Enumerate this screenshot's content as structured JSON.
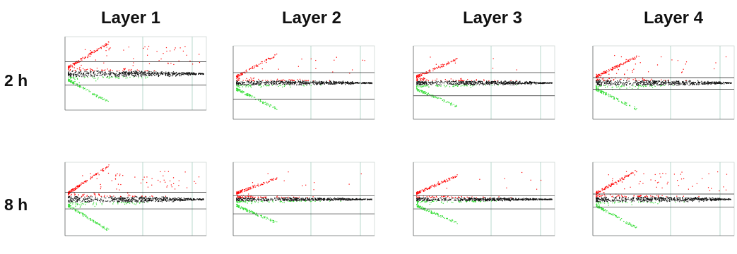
{
  "columns": [
    {
      "label": "Layer 1"
    },
    {
      "label": "Layer 2"
    },
    {
      "label": "Layer 3"
    },
    {
      "label": "Layer 4"
    }
  ],
  "rows": [
    {
      "label": "2 h"
    },
    {
      "label": "8 h"
    }
  ],
  "colors": {
    "up": "#ff0000",
    "down": "#33dd33",
    "neutral": "#111111",
    "gridline": "#9cc8b8",
    "threshold": "#222222"
  },
  "chart_data": [
    {
      "type": "scatter",
      "layer": "Layer 1",
      "time": "2 h",
      "up_spread": 1.0,
      "down_spread": 0.9,
      "extra_up": 0.8,
      "band": 0.35,
      "threshold_up": 0.35,
      "threshold_down": -0.35
    },
    {
      "type": "scatter",
      "layer": "Layer 2",
      "time": "2 h",
      "up_spread": 0.9,
      "down_spread": 0.8,
      "extra_up": 0.25,
      "band": 0.25,
      "threshold_up": 0.3,
      "threshold_down": -0.5
    },
    {
      "type": "scatter",
      "layer": "Layer 3",
      "time": "2 h",
      "up_spread": 0.7,
      "down_spread": 0.7,
      "extra_up": 0.15,
      "band": 0.25,
      "threshold_up": 0.3,
      "threshold_down": -0.4
    },
    {
      "type": "scatter",
      "layer": "Layer 4",
      "time": "2 h",
      "up_spread": 0.8,
      "down_spread": 0.8,
      "extra_up": 0.5,
      "band": 0.3,
      "threshold_up": 0.15,
      "threshold_down": -0.2
    },
    {
      "type": "scatter",
      "layer": "Layer 1",
      "time": "8 h",
      "up_spread": 1.1,
      "down_spread": 1.0,
      "extra_up": 0.9,
      "band": 0.35,
      "threshold_up": 0.2,
      "threshold_down": -0.3
    },
    {
      "type": "scatter",
      "layer": "Layer 2",
      "time": "8 h",
      "up_spread": 0.6,
      "down_spread": 0.7,
      "extra_up": 0.2,
      "band": 0.2,
      "threshold_up": 0.1,
      "threshold_down": -0.45
    },
    {
      "type": "scatter",
      "layer": "Layer 3",
      "time": "8 h",
      "up_spread": 0.7,
      "down_spread": 0.7,
      "extra_up": 0.15,
      "band": 0.2,
      "threshold_up": 0.1,
      "threshold_down": -0.3
    },
    {
      "type": "scatter",
      "layer": "Layer 4",
      "time": "8 h",
      "up_spread": 0.9,
      "down_spread": 0.9,
      "extra_up": 0.8,
      "band": 0.3,
      "threshold_up": 0.15,
      "threshold_down": -0.25
    }
  ]
}
